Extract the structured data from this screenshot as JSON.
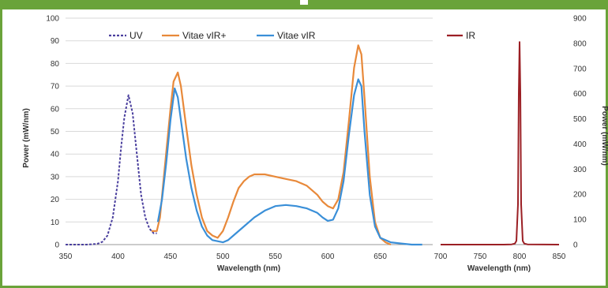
{
  "colors": {
    "frame": "#6aa33a",
    "uv": "#4a3f9e",
    "vir_plus": "#e8893a",
    "vir": "#3a8fd8",
    "ir": "#9b1f24",
    "grid": "#d9d9d9"
  },
  "chart_data": [
    {
      "type": "line",
      "xlabel": "Wavelength (nm)",
      "ylabel": "Power (mW/nm)",
      "xlim": [
        350,
        700
      ],
      "ylim": [
        0,
        100
      ],
      "x_ticks": [
        "350",
        "400",
        "450",
        "500",
        "550",
        "600",
        "650"
      ],
      "y_ticks": [
        "0",
        "10",
        "20",
        "30",
        "40",
        "50",
        "60",
        "70",
        "80",
        "90",
        "100"
      ],
      "grid": "horizontal",
      "legend": "top",
      "series": [
        {
          "name": "UV",
          "style": "dashed",
          "x": [
            350,
            370,
            380,
            385,
            390,
            395,
            400,
            403,
            406,
            410,
            414,
            418,
            422,
            426,
            430,
            434,
            437
          ],
          "y": [
            0,
            0,
            0.3,
            1.2,
            4,
            12,
            28,
            43,
            56,
            66,
            58,
            40,
            22,
            12,
            7,
            5,
            5
          ]
        },
        {
          "name": "Vitae vIR+",
          "style": "solid",
          "x": [
            432,
            437,
            440,
            445,
            450,
            453,
            457,
            460,
            465,
            470,
            475,
            480,
            485,
            490,
            495,
            500,
            505,
            510,
            515,
            520,
            525,
            530,
            540,
            550,
            560,
            570,
            580,
            590,
            595,
            600,
            605,
            610,
            615,
            620,
            625,
            629,
            632,
            635,
            640,
            645,
            650,
            655,
            660
          ],
          "y": [
            6,
            6,
            12,
            36,
            60,
            72,
            76,
            70,
            52,
            35,
            22,
            12,
            6,
            4,
            3,
            6,
            12,
            19,
            25,
            28,
            30,
            31,
            31,
            30,
            29,
            28,
            26,
            22,
            19,
            17,
            16,
            20,
            32,
            54,
            78,
            88,
            84,
            65,
            30,
            10,
            3,
            1,
            0
          ]
        },
        {
          "name": "Vitae vIR",
          "style": "solid",
          "x": [
            438,
            442,
            446,
            450,
            454,
            457,
            460,
            465,
            470,
            475,
            480,
            485,
            490,
            495,
            500,
            505,
            510,
            520,
            530,
            540,
            550,
            560,
            570,
            580,
            590,
            595,
            600,
            605,
            610,
            615,
            620,
            625,
            629,
            632,
            635,
            640,
            645,
            650,
            660,
            670,
            680,
            690
          ],
          "y": [
            10,
            20,
            36,
            55,
            69,
            65,
            55,
            38,
            25,
            15,
            8,
            4,
            2,
            1.5,
            1,
            2,
            4,
            8,
            12,
            15,
            17,
            17.5,
            17,
            16,
            14,
            12,
            10.5,
            11,
            16,
            28,
            48,
            66,
            73,
            70,
            50,
            22,
            8,
            3,
            1,
            0.5,
            0,
            0
          ]
        }
      ]
    },
    {
      "type": "line",
      "xlabel": "Wavelength (nm)",
      "ylabel": "Power (mW/nm)",
      "xlim": [
        700,
        850
      ],
      "ylim": [
        0,
        900
      ],
      "x_ticks": [
        "700",
        "750",
        "800",
        "850"
      ],
      "y_ticks": [
        "0",
        "100",
        "200",
        "300",
        "400",
        "500",
        "600",
        "700",
        "800",
        "900"
      ],
      "grid": "none",
      "legend": "top-left",
      "series": [
        {
          "name": "IR",
          "style": "solid",
          "x": [
            700,
            780,
            790,
            794,
            796,
            798,
            799,
            800,
            801,
            802,
            804,
            806,
            810,
            850
          ],
          "y": [
            0,
            0,
            1,
            4,
            15,
            160,
            600,
            805,
            600,
            160,
            15,
            4,
            1,
            0
          ]
        }
      ]
    }
  ]
}
